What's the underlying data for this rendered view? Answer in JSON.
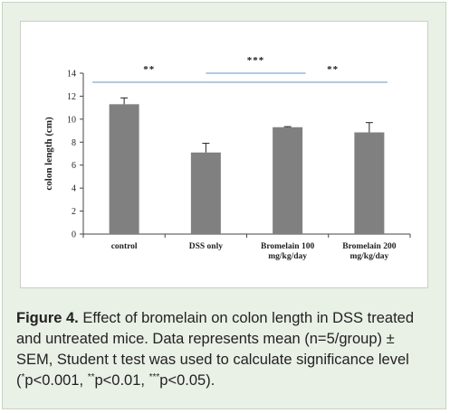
{
  "chart_data": {
    "type": "bar",
    "ylabel": "colon length (cm)",
    "ylim": [
      0,
      14
    ],
    "yticks": [
      "0",
      "2",
      "4",
      "6",
      "8",
      "10",
      "12",
      "14"
    ],
    "categories": [
      [
        "control"
      ],
      [
        "DSS only"
      ],
      [
        "Bromelain  100",
        "mg/kg/day"
      ],
      [
        "Bromelain 200",
        "mg/kg/day"
      ]
    ],
    "values": [
      11.3,
      7.1,
      9.3,
      8.85
    ],
    "errors": [
      0.55,
      0.8,
      0.05,
      0.85
    ],
    "bar_color": "#808080",
    "line_color": "#9ab8d6",
    "significance": [
      {
        "label": "**",
        "from": 0,
        "to": 1
      },
      {
        "label": "***",
        "from": 1,
        "to": 2
      },
      {
        "label": "**",
        "from": 1,
        "to": 3
      }
    ],
    "grid": false,
    "legend": "none"
  },
  "caption": {
    "label": "Figure 4.",
    "line1": " Effect of bromelain on colon length in DSS treated",
    "line2": "and untreated mice. Data represents mean (n=5/group) ±",
    "line3": "SEM, Student t test was used to calculate significance level",
    "line4_open": "(",
    "sup1": "*",
    "part1": "p<0.001, ",
    "sup2": "**",
    "part2": "p<0.01, ",
    "sup3": "***",
    "part3": "p<0.05)."
  }
}
